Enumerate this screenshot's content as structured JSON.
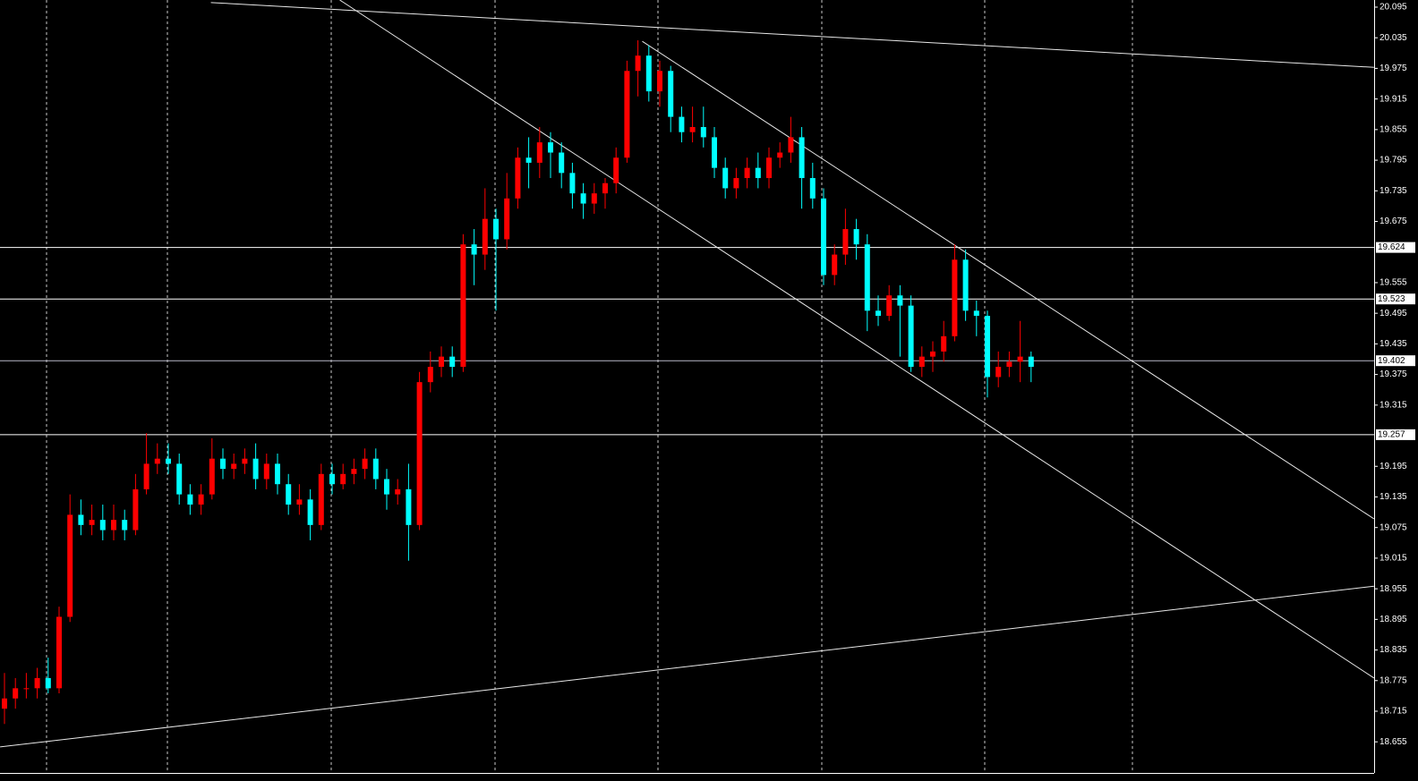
{
  "chart_data": {
    "type": "candlestick",
    "up_color": "#ff0000",
    "down_color": "#00ffff",
    "ylim": [
      18.594,
      20.109
    ],
    "yticks": [
      20.095,
      20.035,
      19.975,
      19.915,
      19.855,
      19.795,
      19.735,
      19.675,
      19.555,
      19.495,
      19.435,
      19.375,
      19.315,
      19.195,
      19.135,
      19.075,
      19.015,
      18.955,
      18.895,
      18.835,
      18.775,
      18.715,
      18.655
    ],
    "hlines": [
      19.624,
      19.523,
      19.402,
      19.257
    ],
    "trendlines": [
      {
        "x": [
          18.9,
          125.4
        ],
        "y": [
          20.104,
          19.977
        ]
      },
      {
        "x": [
          30.7,
          125.4
        ],
        "y": [
          20.109,
          18.78
        ]
      },
      {
        "x": [
          58.4,
          125.4
        ],
        "y": [
          20.028,
          19.092
        ]
      },
      {
        "x": [
          -0.4,
          125.4
        ],
        "y": [
          18.645,
          18.96
        ]
      }
    ],
    "ohlc": [
      [
        18.72,
        18.79,
        18.69,
        18.74
      ],
      [
        18.74,
        18.78,
        18.72,
        18.76
      ],
      [
        18.76,
        18.79,
        18.74,
        18.76
      ],
      [
        18.76,
        18.8,
        18.74,
        18.78
      ],
      [
        18.78,
        18.82,
        18.75,
        18.76
      ],
      [
        18.76,
        18.92,
        18.75,
        18.9
      ],
      [
        18.9,
        19.14,
        18.89,
        19.1
      ],
      [
        19.1,
        19.13,
        19.06,
        19.08
      ],
      [
        19.08,
        19.12,
        19.06,
        19.09
      ],
      [
        19.09,
        19.12,
        19.05,
        19.07
      ],
      [
        19.07,
        19.12,
        19.05,
        19.09
      ],
      [
        19.09,
        19.11,
        19.05,
        19.07
      ],
      [
        19.07,
        19.18,
        19.06,
        19.15
      ],
      [
        19.15,
        19.26,
        19.14,
        19.2
      ],
      [
        19.2,
        19.24,
        19.18,
        19.21
      ],
      [
        19.21,
        19.24,
        19.18,
        19.2
      ],
      [
        19.2,
        19.22,
        19.12,
        19.14
      ],
      [
        19.14,
        19.16,
        19.1,
        19.12
      ],
      [
        19.12,
        19.16,
        19.1,
        19.14
      ],
      [
        19.14,
        19.25,
        19.13,
        19.21
      ],
      [
        19.21,
        19.23,
        19.17,
        19.19
      ],
      [
        19.19,
        19.22,
        19.17,
        19.2
      ],
      [
        19.2,
        19.23,
        19.18,
        19.21
      ],
      [
        19.21,
        19.24,
        19.15,
        19.17
      ],
      [
        19.17,
        19.22,
        19.15,
        19.2
      ],
      [
        19.2,
        19.22,
        19.14,
        19.16
      ],
      [
        19.16,
        19.18,
        19.1,
        19.12
      ],
      [
        19.12,
        19.16,
        19.1,
        19.13
      ],
      [
        19.13,
        19.15,
        19.05,
        19.08
      ],
      [
        19.08,
        19.2,
        19.07,
        19.18
      ],
      [
        19.18,
        19.2,
        19.14,
        19.16
      ],
      [
        19.16,
        19.2,
        19.15,
        19.18
      ],
      [
        19.18,
        19.21,
        19.16,
        19.19
      ],
      [
        19.19,
        19.23,
        19.17,
        19.21
      ],
      [
        19.21,
        19.23,
        19.15,
        19.17
      ],
      [
        19.17,
        19.19,
        19.11,
        19.14
      ],
      [
        19.14,
        19.17,
        19.12,
        19.15
      ],
      [
        19.15,
        19.2,
        19.01,
        19.08
      ],
      [
        19.08,
        19.38,
        19.07,
        19.36
      ],
      [
        19.36,
        19.42,
        19.34,
        19.39
      ],
      [
        19.39,
        19.43,
        19.37,
        19.41
      ],
      [
        19.41,
        19.43,
        19.37,
        19.39
      ],
      [
        19.39,
        19.65,
        19.38,
        19.63
      ],
      [
        19.63,
        19.66,
        19.55,
        19.61
      ],
      [
        19.61,
        19.74,
        19.58,
        19.68
      ],
      [
        19.68,
        19.7,
        19.5,
        19.64
      ],
      [
        19.64,
        19.77,
        19.62,
        19.72
      ],
      [
        19.72,
        19.82,
        19.7,
        19.8
      ],
      [
        19.8,
        19.84,
        19.74,
        19.79
      ],
      [
        19.79,
        19.86,
        19.76,
        19.83
      ],
      [
        19.83,
        19.85,
        19.76,
        19.81
      ],
      [
        19.81,
        19.83,
        19.74,
        19.77
      ],
      [
        19.77,
        19.79,
        19.7,
        19.73
      ],
      [
        19.73,
        19.75,
        19.68,
        19.71
      ],
      [
        19.71,
        19.75,
        19.69,
        19.73
      ],
      [
        19.73,
        19.76,
        19.7,
        19.75
      ],
      [
        19.75,
        19.82,
        19.73,
        19.8
      ],
      [
        19.8,
        19.99,
        19.79,
        19.97
      ],
      [
        19.97,
        20.03,
        19.92,
        20.0
      ],
      [
        20.0,
        20.02,
        19.91,
        19.93
      ],
      [
        19.93,
        19.99,
        19.9,
        19.97
      ],
      [
        19.97,
        19.98,
        19.85,
        19.88
      ],
      [
        19.88,
        19.9,
        19.83,
        19.85
      ],
      [
        19.85,
        19.9,
        19.83,
        19.86
      ],
      [
        19.86,
        19.9,
        19.82,
        19.84
      ],
      [
        19.84,
        19.86,
        19.76,
        19.78
      ],
      [
        19.78,
        19.8,
        19.72,
        19.74
      ],
      [
        19.74,
        19.78,
        19.72,
        19.76
      ],
      [
        19.76,
        19.8,
        19.74,
        19.78
      ],
      [
        19.78,
        19.81,
        19.74,
        19.76
      ],
      [
        19.76,
        19.82,
        19.74,
        19.8
      ],
      [
        19.8,
        19.83,
        19.78,
        19.81
      ],
      [
        19.81,
        19.88,
        19.79,
        19.84
      ],
      [
        19.84,
        19.86,
        19.7,
        19.76
      ],
      [
        19.76,
        19.79,
        19.7,
        19.72
      ],
      [
        19.72,
        19.74,
        19.55,
        19.57
      ],
      [
        19.57,
        19.63,
        19.55,
        19.61
      ],
      [
        19.61,
        19.7,
        19.59,
        19.66
      ],
      [
        19.66,
        19.68,
        19.6,
        19.63
      ],
      [
        19.63,
        19.65,
        19.46,
        19.5
      ],
      [
        19.5,
        19.53,
        19.47,
        19.49
      ],
      [
        19.49,
        19.55,
        19.48,
        19.53
      ],
      [
        19.53,
        19.55,
        19.41,
        19.51
      ],
      [
        19.51,
        19.53,
        19.38,
        19.39
      ],
      [
        19.39,
        19.43,
        19.37,
        19.41
      ],
      [
        19.41,
        19.44,
        19.38,
        19.42
      ],
      [
        19.42,
        19.48,
        19.4,
        19.45
      ],
      [
        19.45,
        19.63,
        19.44,
        19.6
      ],
      [
        19.6,
        19.62,
        19.48,
        19.5
      ],
      [
        19.5,
        19.52,
        19.45,
        19.49
      ],
      [
        19.49,
        19.5,
        19.33,
        19.37
      ],
      [
        19.37,
        19.42,
        19.35,
        19.39
      ],
      [
        19.39,
        19.42,
        19.37,
        19.4
      ],
      [
        19.4,
        19.48,
        19.36,
        19.41
      ],
      [
        19.41,
        19.42,
        19.36,
        19.39
      ]
    ]
  }
}
